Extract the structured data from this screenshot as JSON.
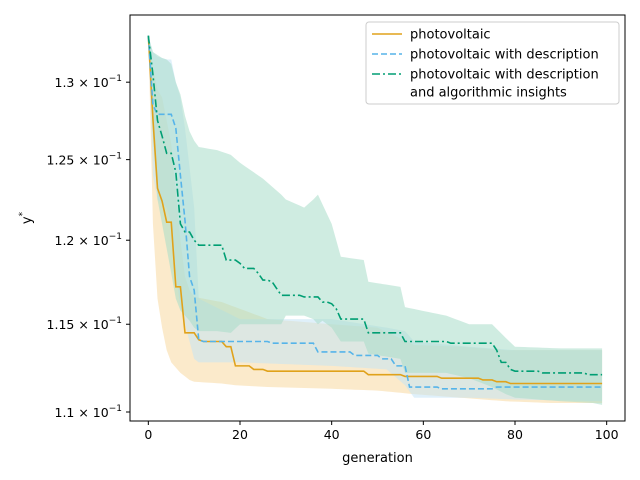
{
  "chart_data": {
    "type": "line",
    "xlabel": "generation",
    "ylabel_base": "y",
    "ylabel_sup": "*",
    "y_scale": "log",
    "xlim": [
      -4,
      104
    ],
    "ylim": [
      0.1095,
      0.1345
    ],
    "x_ticks": [
      0,
      20,
      40,
      60,
      80,
      100
    ],
    "y_ticks": [
      {
        "value": 0.11,
        "mant": "1.1 × 10",
        "exp": "−1"
      },
      {
        "value": 0.115,
        "mant": "1.15 × 10",
        "exp": "−1"
      },
      {
        "value": 0.12,
        "mant": "1.2 × 10",
        "exp": "−1"
      },
      {
        "value": 0.125,
        "mant": "1.25 × 10",
        "exp": "−1"
      },
      {
        "value": 0.13,
        "mant": "1.3 × 10",
        "exp": "−1"
      }
    ],
    "legend_position": "top-right",
    "series": [
      {
        "name": "photovoltaic",
        "color": "#E0A21B",
        "dash": "solid",
        "band_color": "#F7D9A0",
        "points": [
          [
            0,
            0.1331
          ],
          [
            1,
            0.1276
          ],
          [
            2,
            0.1232
          ],
          [
            3,
            0.1224
          ],
          [
            4,
            0.1211
          ],
          [
            5,
            0.1211
          ],
          [
            6,
            0.1172
          ],
          [
            7,
            0.1172
          ],
          [
            8,
            0.1145
          ],
          [
            9,
            0.1145
          ],
          [
            10,
            0.1145
          ],
          [
            11,
            0.1141
          ],
          [
            12,
            0.114
          ],
          [
            16,
            0.114
          ],
          [
            17,
            0.1137
          ],
          [
            18,
            0.1137
          ],
          [
            19,
            0.1126
          ],
          [
            22,
            0.1126
          ],
          [
            23,
            0.1124
          ],
          [
            25,
            0.1124
          ],
          [
            26,
            0.1123
          ],
          [
            47,
            0.1123
          ],
          [
            48,
            0.1121
          ],
          [
            55,
            0.1121
          ],
          [
            56,
            0.112
          ],
          [
            63,
            0.112
          ],
          [
            64,
            0.1119
          ],
          [
            72,
            0.1119
          ],
          [
            73,
            0.1118
          ],
          [
            75,
            0.1118
          ],
          [
            76,
            0.1117
          ],
          [
            78,
            0.1117
          ],
          [
            79,
            0.1116
          ],
          [
            99,
            0.1116
          ]
        ],
        "band": [
          [
            0,
            0.1331,
            0.1331
          ],
          [
            1,
            0.121,
            0.131
          ],
          [
            2,
            0.1165,
            0.1295
          ],
          [
            3,
            0.1148,
            0.129
          ],
          [
            4,
            0.1135,
            0.1275
          ],
          [
            5,
            0.1128,
            0.126
          ],
          [
            6,
            0.1125,
            0.123
          ],
          [
            7,
            0.1122,
            0.12
          ],
          [
            8,
            0.112,
            0.1178
          ],
          [
            9,
            0.1118,
            0.117
          ],
          [
            10,
            0.1117,
            0.1166
          ],
          [
            16,
            0.1116,
            0.1163
          ],
          [
            19,
            0.1115,
            0.116
          ],
          [
            26,
            0.1114,
            0.1153
          ],
          [
            40,
            0.1113,
            0.115
          ],
          [
            50,
            0.1112,
            0.1148
          ],
          [
            58,
            0.111,
            0.1138
          ],
          [
            68,
            0.1108,
            0.1137
          ],
          [
            78,
            0.1106,
            0.1135
          ],
          [
            88,
            0.1105,
            0.1135
          ],
          [
            99,
            0.1105,
            0.1135
          ]
        ]
      },
      {
        "name": "photovoltaic with description",
        "color": "#56B4E9",
        "dash": "dashed",
        "band_color": "#C5E3F5",
        "points": [
          [
            0,
            0.1331
          ],
          [
            1,
            0.1285
          ],
          [
            2,
            0.1279
          ],
          [
            5,
            0.1279
          ],
          [
            6,
            0.127
          ],
          [
            7,
            0.124
          ],
          [
            8,
            0.1212
          ],
          [
            9,
            0.1178
          ],
          [
            10,
            0.117
          ],
          [
            11,
            0.1141
          ],
          [
            12,
            0.114
          ],
          [
            26,
            0.114
          ],
          [
            27,
            0.1139
          ],
          [
            36,
            0.1139
          ],
          [
            37,
            0.1134
          ],
          [
            44,
            0.1134
          ],
          [
            45,
            0.1132
          ],
          [
            50,
            0.1132
          ],
          [
            51,
            0.113
          ],
          [
            53,
            0.113
          ],
          [
            54,
            0.1126
          ],
          [
            56,
            0.1126
          ],
          [
            57,
            0.1114
          ],
          [
            63,
            0.1114
          ],
          [
            64,
            0.1113
          ],
          [
            75,
            0.1113
          ],
          [
            76,
            0.1114
          ],
          [
            99,
            0.1114
          ]
        ],
        "band": [
          [
            0,
            0.1331,
            0.1331
          ],
          [
            1,
            0.124,
            0.132
          ],
          [
            2,
            0.1225,
            0.1317
          ],
          [
            4,
            0.122,
            0.1315
          ],
          [
            5,
            0.121,
            0.1315
          ],
          [
            6,
            0.118,
            0.13
          ],
          [
            7,
            0.116,
            0.129
          ],
          [
            8,
            0.115,
            0.127
          ],
          [
            9,
            0.114,
            0.1245
          ],
          [
            10,
            0.113,
            0.122
          ],
          [
            11,
            0.1128,
            0.1165
          ],
          [
            20,
            0.1128,
            0.1153
          ],
          [
            40,
            0.1126,
            0.1153
          ],
          [
            52,
            0.1124,
            0.1148
          ],
          [
            56,
            0.1115,
            0.1146
          ],
          [
            58,
            0.1108,
            0.114
          ],
          [
            70,
            0.1108,
            0.1137
          ],
          [
            80,
            0.1107,
            0.1135
          ],
          [
            99,
            0.1106,
            0.1135
          ]
        ]
      },
      {
        "name": "photovoltaic with description",
        "name2": "and algorithmic insights",
        "color": "#009E73",
        "dash": "dashdot",
        "band_color": "#A8DCC8",
        "points": [
          [
            0,
            0.1331
          ],
          [
            1,
            0.1305
          ],
          [
            2,
            0.1275
          ],
          [
            3,
            0.1265
          ],
          [
            4,
            0.1254
          ],
          [
            5,
            0.1254
          ],
          [
            6,
            0.1242
          ],
          [
            7,
            0.121
          ],
          [
            8,
            0.1205
          ],
          [
            9,
            0.1205
          ],
          [
            10,
            0.12
          ],
          [
            11,
            0.1197
          ],
          [
            12,
            0.1197
          ],
          [
            16,
            0.1197
          ],
          [
            17,
            0.1188
          ],
          [
            19,
            0.1188
          ],
          [
            20,
            0.1186
          ],
          [
            21,
            0.1183
          ],
          [
            24,
            0.118
          ],
          [
            25,
            0.1176
          ],
          [
            27,
            0.1175
          ],
          [
            28,
            0.1171
          ],
          [
            29,
            0.1167
          ],
          [
            33,
            0.1167
          ],
          [
            34,
            0.1166
          ],
          [
            36,
            0.1166
          ],
          [
            38,
            0.1163
          ],
          [
            40,
            0.1162
          ],
          [
            41,
            0.1159
          ],
          [
            42,
            0.1153
          ],
          [
            47,
            0.1153
          ],
          [
            48,
            0.1145
          ],
          [
            55,
            0.1145
          ],
          [
            56,
            0.114
          ],
          [
            65,
            0.114
          ],
          [
            66,
            0.1139
          ],
          [
            74,
            0.1139
          ],
          [
            76,
            0.1135
          ],
          [
            77,
            0.1128
          ],
          [
            79,
            0.1124
          ],
          [
            80,
            0.1123
          ],
          [
            85,
            0.1123
          ],
          [
            86,
            0.1122
          ],
          [
            95,
            0.1122
          ],
          [
            96,
            0.1121
          ],
          [
            99,
            0.1121
          ]
        ],
        "band": [
          [
            0,
            0.1331,
            0.1331
          ],
          [
            1,
            0.1265,
            0.132
          ],
          [
            2,
            0.1225,
            0.1318
          ],
          [
            3,
            0.121,
            0.1316
          ],
          [
            4,
            0.1195,
            0.1315
          ],
          [
            5,
            0.118,
            0.1312
          ],
          [
            6,
            0.1165,
            0.13
          ],
          [
            7,
            0.1158,
            0.1292
          ],
          [
            8,
            0.1155,
            0.1278
          ],
          [
            9,
            0.1152,
            0.1268
          ],
          [
            10,
            0.1148,
            0.1262
          ],
          [
            11,
            0.1146,
            0.1258
          ],
          [
            15,
            0.1146,
            0.1256
          ],
          [
            18,
            0.1145,
            0.1253
          ],
          [
            20,
            0.115,
            0.1248
          ],
          [
            25,
            0.115,
            0.1238
          ],
          [
            29,
            0.115,
            0.1228
          ],
          [
            30,
            0.1155,
            0.1225
          ],
          [
            34,
            0.1155,
            0.122
          ],
          [
            36,
            0.1153,
            0.1225
          ],
          [
            37,
            0.115,
            0.1228
          ],
          [
            38,
            0.1152,
            0.1222
          ],
          [
            40,
            0.1148,
            0.121
          ],
          [
            42,
            0.114,
            0.119
          ],
          [
            47,
            0.114,
            0.1188
          ],
          [
            48,
            0.1133,
            0.1175
          ],
          [
            55,
            0.113,
            0.1172
          ],
          [
            56,
            0.1122,
            0.116
          ],
          [
            65,
            0.1122,
            0.1155
          ],
          [
            70,
            0.1119,
            0.115
          ],
          [
            75,
            0.1114,
            0.115
          ],
          [
            78,
            0.111,
            0.1142
          ],
          [
            80,
            0.1108,
            0.1137
          ],
          [
            90,
            0.1106,
            0.1136
          ],
          [
            97,
            0.1105,
            0.1136
          ],
          [
            99,
            0.1104,
            0.1136
          ]
        ]
      }
    ]
  }
}
